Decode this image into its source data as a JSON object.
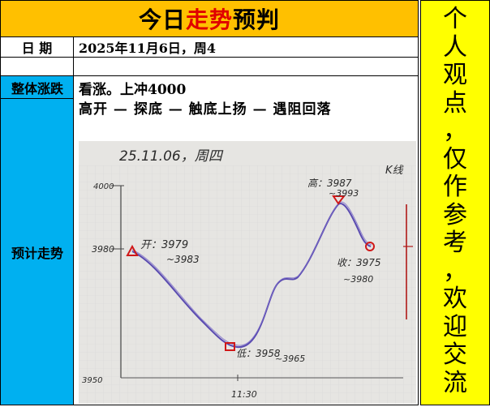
{
  "title": {
    "prefix": "今日",
    "highlight": "走势",
    "suffix": "预判"
  },
  "date_row": {
    "label": "日  期",
    "value": "2025年11月6日，周4"
  },
  "overall": {
    "label": "整体涨跌",
    "text": "看涨。上冲4000"
  },
  "forecast": {
    "label": "预计走势",
    "path": "高开 — 探底 — 触底上扬 — 遇阻回落"
  },
  "sketch": {
    "header": "25.11.06，周四",
    "corner": "K线",
    "axis_top": "4000",
    "axis_mid": "3980",
    "axis_bottom": "3950",
    "time_label": "11:30",
    "open_label": "开：3979",
    "open_sub": "~3983",
    "low_label": "低：3958",
    "low_sub": "~3965",
    "high_label": "高：3987",
    "high_sub": "~3993",
    "close_label": "收：3975",
    "close_sub": "~3980"
  },
  "side_text": "个人观点，仅作参考，欢迎交流",
  "colors": {
    "title_bg": "#ffc000",
    "highlight": "#e00000",
    "left_col": "#00b0f0",
    "side_bg": "#ffff00",
    "curve": "#5a4bb0",
    "marker": "#d01818"
  }
}
